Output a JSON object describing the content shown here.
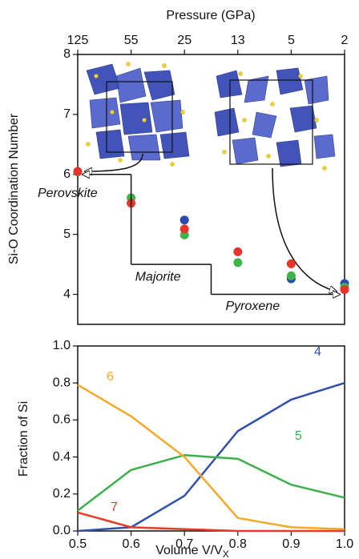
{
  "chart_data": [
    {
      "type": "scatter",
      "xlabel": "Pressure (GPa)",
      "ylabel": "Si-O Coordination Number",
      "x": [
        0.5,
        0.6,
        0.7,
        0.8,
        0.9,
        1.0
      ],
      "series": [
        {
          "color": "#2a4bb0",
          "values": [
            null,
            null,
            5.24,
            null,
            4.26,
            4.18
          ]
        },
        {
          "color": "#3db54a",
          "values": [
            6.04,
            5.61,
            4.99,
            4.53,
            4.31,
            4.12
          ]
        },
        {
          "color": "#e8342a",
          "values": [
            6.05,
            5.52,
            5.09,
            4.71,
            4.51,
            4.08
          ]
        }
      ],
      "phases": [
        {
          "label": "Perovskite",
          "value": 6,
          "x": [
            0.5,
            0.6
          ]
        },
        {
          "label": "Majorite",
          "value": 4.5,
          "x": [
            0.6,
            0.75
          ]
        },
        {
          "label": "Pyroxene",
          "value": 4,
          "x": [
            0.75,
            1.0
          ]
        }
      ],
      "xlim": [
        0.5,
        1.0
      ],
      "xticks": [
        {
          "value": 0.5,
          "label": "125"
        },
        {
          "value": 0.6,
          "label": "55"
        },
        {
          "value": 0.7,
          "label": "25"
        },
        {
          "value": 0.8,
          "label": "13"
        },
        {
          "value": 0.9,
          "label": "5"
        },
        {
          "value": 1.0,
          "label": "2"
        }
      ],
      "ylim": [
        3.5,
        8
      ],
      "yticks": [
        4,
        5,
        6,
        7,
        8
      ]
    },
    {
      "type": "line",
      "xlabel": "Volume V/V",
      "xlabel_sub": "X",
      "ylabel": "Fraction of Si",
      "x": [
        0.5,
        0.6,
        0.7,
        0.8,
        0.9,
        1.0
      ],
      "series": [
        {
          "name": "4",
          "color": "#3050b0",
          "values": [
            0.0,
            0.02,
            0.19,
            0.54,
            0.71,
            0.8
          ]
        },
        {
          "name": "5",
          "color": "#3cb04a",
          "values": [
            0.11,
            0.33,
            0.41,
            0.39,
            0.25,
            0.18
          ]
        },
        {
          "name": "6",
          "color": "#f5a82a",
          "values": [
            0.79,
            0.62,
            0.4,
            0.07,
            0.02,
            0.01
          ]
        },
        {
          "name": "7",
          "color": "#e83a25",
          "values": [
            0.1,
            0.02,
            0.01,
            0.0,
            0.0,
            0.0
          ]
        }
      ],
      "xlim": [
        0.5,
        1.0
      ],
      "xticks": [
        0.5,
        0.6,
        0.7,
        0.8,
        0.9,
        {
          "value": 1.0,
          "label": "1.0"
        }
      ],
      "ylim": [
        0,
        1.0
      ],
      "yticks": [
        {
          "value": 0,
          "label": "0.0"
        },
        0.2,
        0.4,
        0.6,
        0.8,
        {
          "value": 1.0,
          "label": "1.0"
        }
      ]
    }
  ]
}
